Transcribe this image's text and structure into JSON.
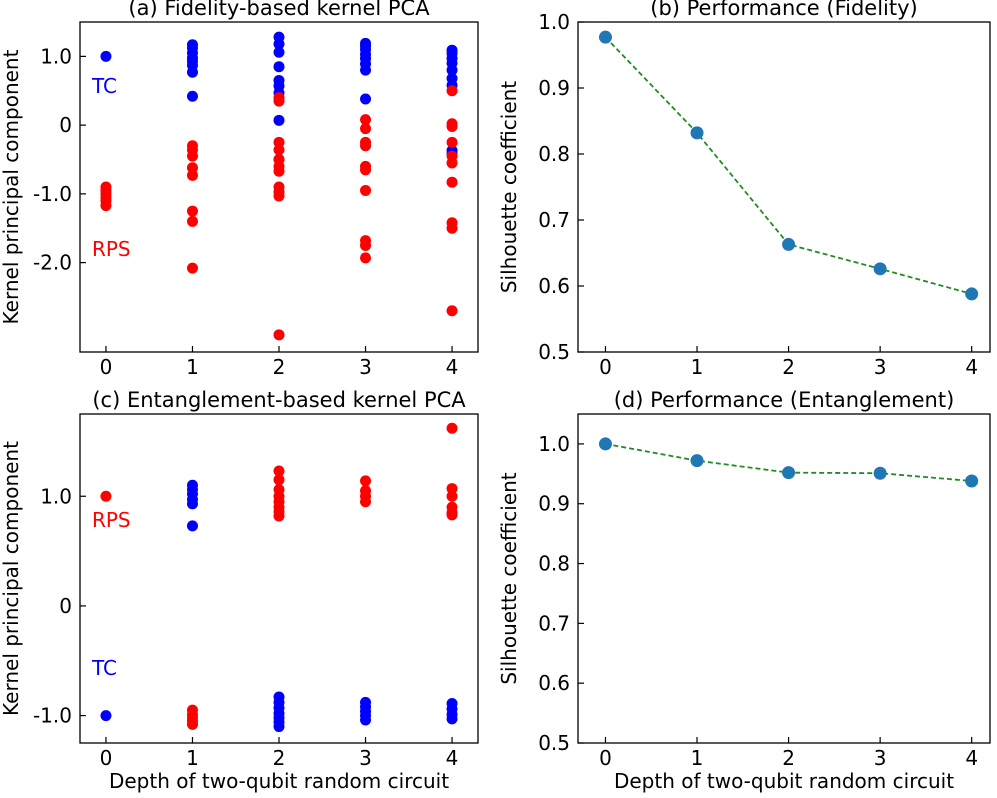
{
  "colors": {
    "TC": "#0000ff",
    "RPS": "#ff0000",
    "performance_marker": "#1f77b4",
    "performance_line": "#228b22"
  },
  "chart_data": [
    {
      "id": "a",
      "type": "scatter",
      "title": "(a) Fidelity-based kernel PCA",
      "xlabel": "",
      "ylabel": "Kernel principal component",
      "xlim": [
        -0.3,
        4.3
      ],
      "ylim": [
        -3.3,
        1.5
      ],
      "xticks": [
        0,
        1,
        2,
        3,
        4
      ],
      "xtick_labels": [
        "0",
        "1",
        "2",
        "3",
        "4"
      ],
      "yticks": [
        1.0,
        0,
        -1.0,
        -2.0
      ],
      "ytick_labels": [
        "1.0",
        "0",
        "-1.0",
        "-2.0"
      ],
      "annotations": [
        {
          "text": "TC",
          "x": 0.03,
          "y": 0.47,
          "color": "TC"
        },
        {
          "text": "RPS",
          "x": 0.03,
          "y": -1.9,
          "color": "RPS"
        }
      ],
      "series": [
        {
          "group": "TC",
          "points": [
            [
              0,
              1.0
            ],
            [
              1,
              1.17
            ],
            [
              1,
              1.12
            ],
            [
              1,
              1.05
            ],
            [
              1,
              0.98
            ],
            [
              1,
              0.93
            ],
            [
              1,
              0.87
            ],
            [
              1,
              0.77
            ],
            [
              1,
              0.42
            ],
            [
              2,
              1.28
            ],
            [
              2,
              1.18
            ],
            [
              2,
              1.06
            ],
            [
              2,
              0.85
            ],
            [
              2,
              0.65
            ],
            [
              2,
              0.57
            ],
            [
              2,
              0.47
            ],
            [
              2,
              0.07
            ],
            [
              2,
              -0.5
            ],
            [
              3,
              1.19
            ],
            [
              3,
              1.15
            ],
            [
              3,
              1.1
            ],
            [
              3,
              1.03
            ],
            [
              3,
              0.97
            ],
            [
              3,
              0.89
            ],
            [
              3,
              0.8
            ],
            [
              3,
              0.38
            ],
            [
              4,
              1.09
            ],
            [
              4,
              1.04
            ],
            [
              4,
              0.97
            ],
            [
              4,
              0.9
            ],
            [
              4,
              0.8
            ],
            [
              4,
              0.68
            ],
            [
              4,
              0.58
            ],
            [
              4,
              -0.37
            ],
            [
              4,
              -0.42
            ]
          ]
        },
        {
          "group": "RPS",
          "points": [
            [
              0,
              -0.9
            ],
            [
              0,
              -0.95
            ],
            [
              0,
              -1.0
            ],
            [
              0,
              -1.05
            ],
            [
              0,
              -1.1
            ],
            [
              0,
              -1.17
            ],
            [
              1,
              -0.3
            ],
            [
              1,
              -0.36
            ],
            [
              1,
              -0.45
            ],
            [
              1,
              -0.62
            ],
            [
              1,
              -0.73
            ],
            [
              1,
              -1.25
            ],
            [
              1,
              -1.4
            ],
            [
              1,
              -2.08
            ],
            [
              2,
              0.4
            ],
            [
              2,
              0.35
            ],
            [
              2,
              -0.25
            ],
            [
              2,
              -0.36
            ],
            [
              2,
              -0.5
            ],
            [
              2,
              -0.6
            ],
            [
              2,
              -0.67
            ],
            [
              2,
              -0.9
            ],
            [
              2,
              -0.97
            ],
            [
              2,
              -1.03
            ],
            [
              2,
              -3.05
            ],
            [
              3,
              0.08
            ],
            [
              3,
              -0.05
            ],
            [
              3,
              -0.25
            ],
            [
              3,
              -0.3
            ],
            [
              3,
              -0.6
            ],
            [
              3,
              -0.65
            ],
            [
              3,
              -0.95
            ],
            [
              3,
              -1.68
            ],
            [
              3,
              -1.75
            ],
            [
              3,
              -1.93
            ],
            [
              4,
              0.5
            ],
            [
              4,
              0.02
            ],
            [
              4,
              -0.02
            ],
            [
              4,
              -0.25
            ],
            [
              4,
              -0.45
            ],
            [
              4,
              -0.55
            ],
            [
              4,
              -0.83
            ],
            [
              4,
              -1.42
            ],
            [
              4,
              -1.5
            ],
            [
              4,
              -2.7
            ]
          ]
        }
      ]
    },
    {
      "id": "b",
      "type": "line",
      "title": "(b) Performance (Fidelity)",
      "xlabel": "",
      "ylabel": "Silhouette coefficient",
      "xlim": [
        -0.3,
        4.2
      ],
      "ylim": [
        0.5,
        1.0
      ],
      "xticks": [
        0,
        1,
        2,
        3,
        4
      ],
      "xtick_labels": [
        "0",
        "1",
        "2",
        "3",
        "4"
      ],
      "yticks": [
        0.5,
        0.6,
        0.7,
        0.8,
        0.9,
        1.0
      ],
      "ytick_labels": [
        "0.5",
        "0.6",
        "0.7",
        "0.8",
        "0.9",
        "1.0"
      ],
      "x": [
        0,
        1,
        2,
        3,
        4
      ],
      "y": [
        0.977,
        0.832,
        0.663,
        0.626,
        0.588
      ]
    },
    {
      "id": "c",
      "type": "scatter",
      "title": "(c) Entanglement-based kernel PCA",
      "xlabel": "Depth of two-qubit random circuit",
      "ylabel": "Kernel principal component",
      "xlim": [
        -0.3,
        4.3
      ],
      "ylim": [
        -1.25,
        1.75
      ],
      "xticks": [
        0,
        1,
        2,
        3,
        4
      ],
      "xtick_labels": [
        "0",
        "1",
        "2",
        "3",
        "4"
      ],
      "yticks": [
        1.0,
        0,
        -1.0
      ],
      "ytick_labels": [
        "1.0",
        "0",
        "-1.0"
      ],
      "annotations": [
        {
          "text": "RPS",
          "x": 0.03,
          "y": 0.72,
          "color": "RPS"
        },
        {
          "text": "TC",
          "x": 0.03,
          "y": -0.63,
          "color": "TC"
        }
      ],
      "series": [
        {
          "group": "RPS",
          "points": [
            [
              0,
              1.0
            ],
            [
              1,
              -0.95
            ],
            [
              1,
              -0.99
            ],
            [
              1,
              -1.02
            ],
            [
              1,
              -1.05
            ],
            [
              1,
              -1.08
            ],
            [
              2,
              1.23
            ],
            [
              2,
              1.15
            ],
            [
              2,
              1.06
            ],
            [
              2,
              1.0
            ],
            [
              2,
              0.95
            ],
            [
              2,
              0.9
            ],
            [
              2,
              0.86
            ],
            [
              2,
              0.82
            ],
            [
              3,
              1.14
            ],
            [
              3,
              1.05
            ],
            [
              3,
              1.0
            ],
            [
              3,
              0.95
            ],
            [
              4,
              1.62
            ],
            [
              4,
              1.07
            ],
            [
              4,
              1.0
            ],
            [
              4,
              0.9
            ],
            [
              4,
              0.85
            ],
            [
              4,
              0.83
            ]
          ]
        },
        {
          "group": "TC",
          "points": [
            [
              0,
              -1.0
            ],
            [
              1,
              1.1
            ],
            [
              1,
              1.06
            ],
            [
              1,
              1.02
            ],
            [
              1,
              0.97
            ],
            [
              1,
              0.93
            ],
            [
              1,
              0.73
            ],
            [
              2,
              -0.83
            ],
            [
              2,
              -0.88
            ],
            [
              2,
              -0.93
            ],
            [
              2,
              -0.98
            ],
            [
              2,
              -1.02
            ],
            [
              2,
              -1.06
            ],
            [
              2,
              -1.1
            ],
            [
              3,
              -0.88
            ],
            [
              3,
              -0.92
            ],
            [
              3,
              -0.96
            ],
            [
              3,
              -1.0
            ],
            [
              3,
              -1.04
            ],
            [
              4,
              -0.89
            ],
            [
              4,
              -0.94
            ],
            [
              4,
              -0.99
            ],
            [
              4,
              -1.03
            ]
          ]
        }
      ]
    },
    {
      "id": "d",
      "type": "line",
      "title": "(d) Performance (Entanglement)",
      "xlabel": "Depth of two-qubit random circuit",
      "ylabel": "Silhouette coefficient",
      "xlim": [
        -0.3,
        4.2
      ],
      "ylim": [
        0.5,
        1.05
      ],
      "xticks": [
        0,
        1,
        2,
        3,
        4
      ],
      "xtick_labels": [
        "0",
        "1",
        "2",
        "3",
        "4"
      ],
      "yticks": [
        0.5,
        0.6,
        0.7,
        0.8,
        0.9,
        1.0
      ],
      "ytick_labels": [
        "0.5",
        "0.6",
        "0.7",
        "0.8",
        "0.9",
        "1.0"
      ],
      "x": [
        0,
        1,
        2,
        3,
        4
      ],
      "y": [
        1.0,
        0.972,
        0.952,
        0.951,
        0.938
      ]
    }
  ]
}
